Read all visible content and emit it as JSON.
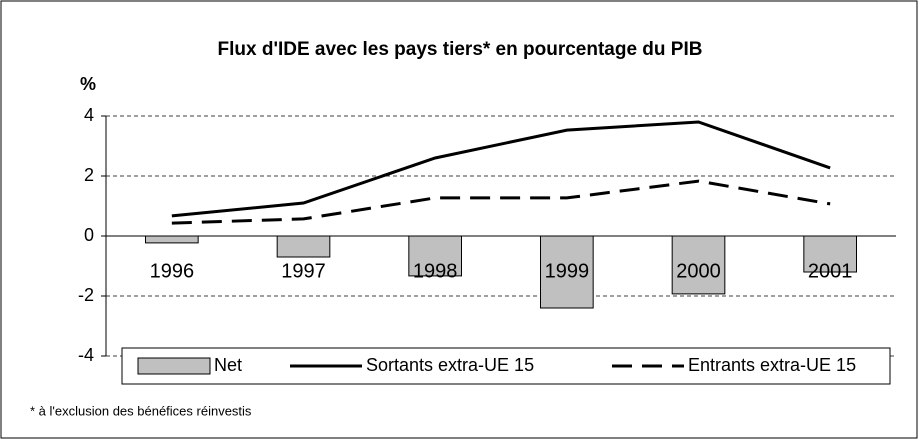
{
  "chart_data": {
    "type": "bar-line",
    "title": "Flux d'IDE avec les pays tiers* en pourcentage du PIB",
    "y_label": "%",
    "footnote": "* à l'exclusion des bénéfices réinvestis",
    "categories": [
      "1996",
      "1997",
      "1998",
      "1999",
      "2000",
      "2001"
    ],
    "series": [
      {
        "name": "Net",
        "kind": "bar",
        "color": "#c0c0c0",
        "values": [
          -0.23,
          -0.7,
          -1.33,
          -2.4,
          -1.93,
          -1.2
        ]
      },
      {
        "name": "Sortants extra-UE 15",
        "kind": "line",
        "color": "#000000",
        "dash": "solid",
        "values": [
          0.67,
          1.1,
          2.6,
          3.53,
          3.8,
          2.27
        ]
      },
      {
        "name": "Entrants extra-UE 15",
        "kind": "line",
        "color": "#000000",
        "dash": "dashed",
        "values": [
          0.43,
          0.57,
          1.27,
          1.27,
          1.83,
          1.07
        ]
      }
    ],
    "ylim": [
      -4,
      4
    ],
    "yticks": [
      -4,
      -2,
      0,
      2,
      4
    ],
    "grid": true
  }
}
